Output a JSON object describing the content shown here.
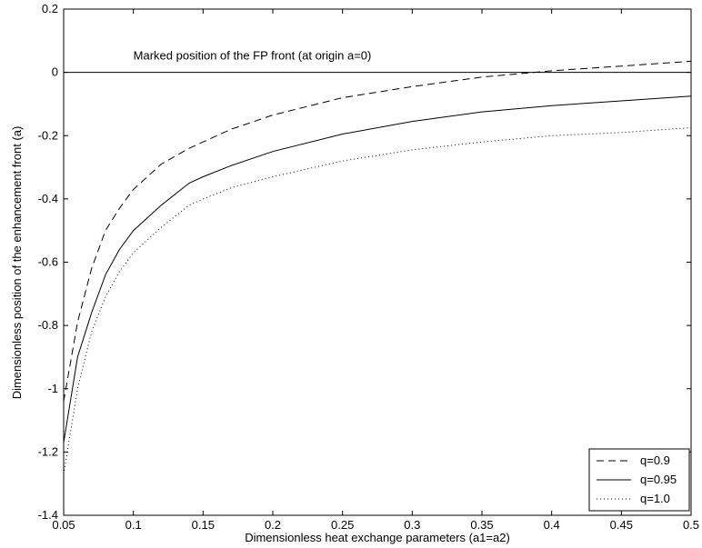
{
  "chart_data": {
    "type": "line",
    "title": "",
    "xlabel": "Dimensionless heat exchange parameters (a1=a2)",
    "ylabel": "Dimensionless position of the enhancement front (a)",
    "xlim": [
      0.05,
      0.5
    ],
    "ylim": [
      -1.4,
      0.2
    ],
    "x_ticks": [
      0.05,
      0.1,
      0.15,
      0.2,
      0.25,
      0.3,
      0.35,
      0.4,
      0.45,
      0.5
    ],
    "x_tick_labels": [
      "0.05",
      "0.1",
      "0.15",
      "0.2",
      "0.25",
      "0.3",
      "0.35",
      "0.4",
      "0.45",
      "0.5"
    ],
    "y_ticks": [
      0.2,
      0,
      -0.2,
      -0.4,
      -0.6,
      -0.8,
      -1,
      -1.2,
      -1.4
    ],
    "y_tick_labels": [
      "0.2",
      "0",
      "-0.2",
      "-0.4",
      "-0.6",
      "-0.8",
      "-1",
      "-1.2",
      "-1.4"
    ],
    "grid": false,
    "legend_position": "bottom-right",
    "annotation": {
      "text": "Marked position of the FP front (at origin a=0)",
      "x": 0.1,
      "y": 0.04
    },
    "reference_line": {
      "y": 0
    },
    "x": [
      0.05,
      0.06,
      0.07,
      0.08,
      0.09,
      0.1,
      0.12,
      0.14,
      0.15,
      0.17,
      0.2,
      0.25,
      0.3,
      0.35,
      0.4,
      0.45,
      0.5
    ],
    "series": [
      {
        "name": "q=0.9",
        "style": "dashed",
        "values": [
          -1.04,
          -0.79,
          -0.62,
          -0.5,
          -0.43,
          -0.37,
          -0.29,
          -0.24,
          -0.22,
          -0.18,
          -0.135,
          -0.08,
          -0.045,
          -0.015,
          0.005,
          0.02,
          0.035
        ]
      },
      {
        "name": "q=0.95",
        "style": "solid",
        "values": [
          -1.17,
          -0.9,
          -0.76,
          -0.64,
          -0.56,
          -0.5,
          -0.42,
          -0.35,
          -0.33,
          -0.295,
          -0.25,
          -0.195,
          -0.155,
          -0.125,
          -0.105,
          -0.09,
          -0.075
        ]
      },
      {
        "name": "q=1.0",
        "style": "dotted",
        "values": [
          -1.27,
          -1.0,
          -0.82,
          -0.71,
          -0.63,
          -0.57,
          -0.49,
          -0.42,
          -0.4,
          -0.365,
          -0.33,
          -0.28,
          -0.245,
          -0.22,
          -0.2,
          -0.19,
          -0.175
        ]
      }
    ]
  }
}
